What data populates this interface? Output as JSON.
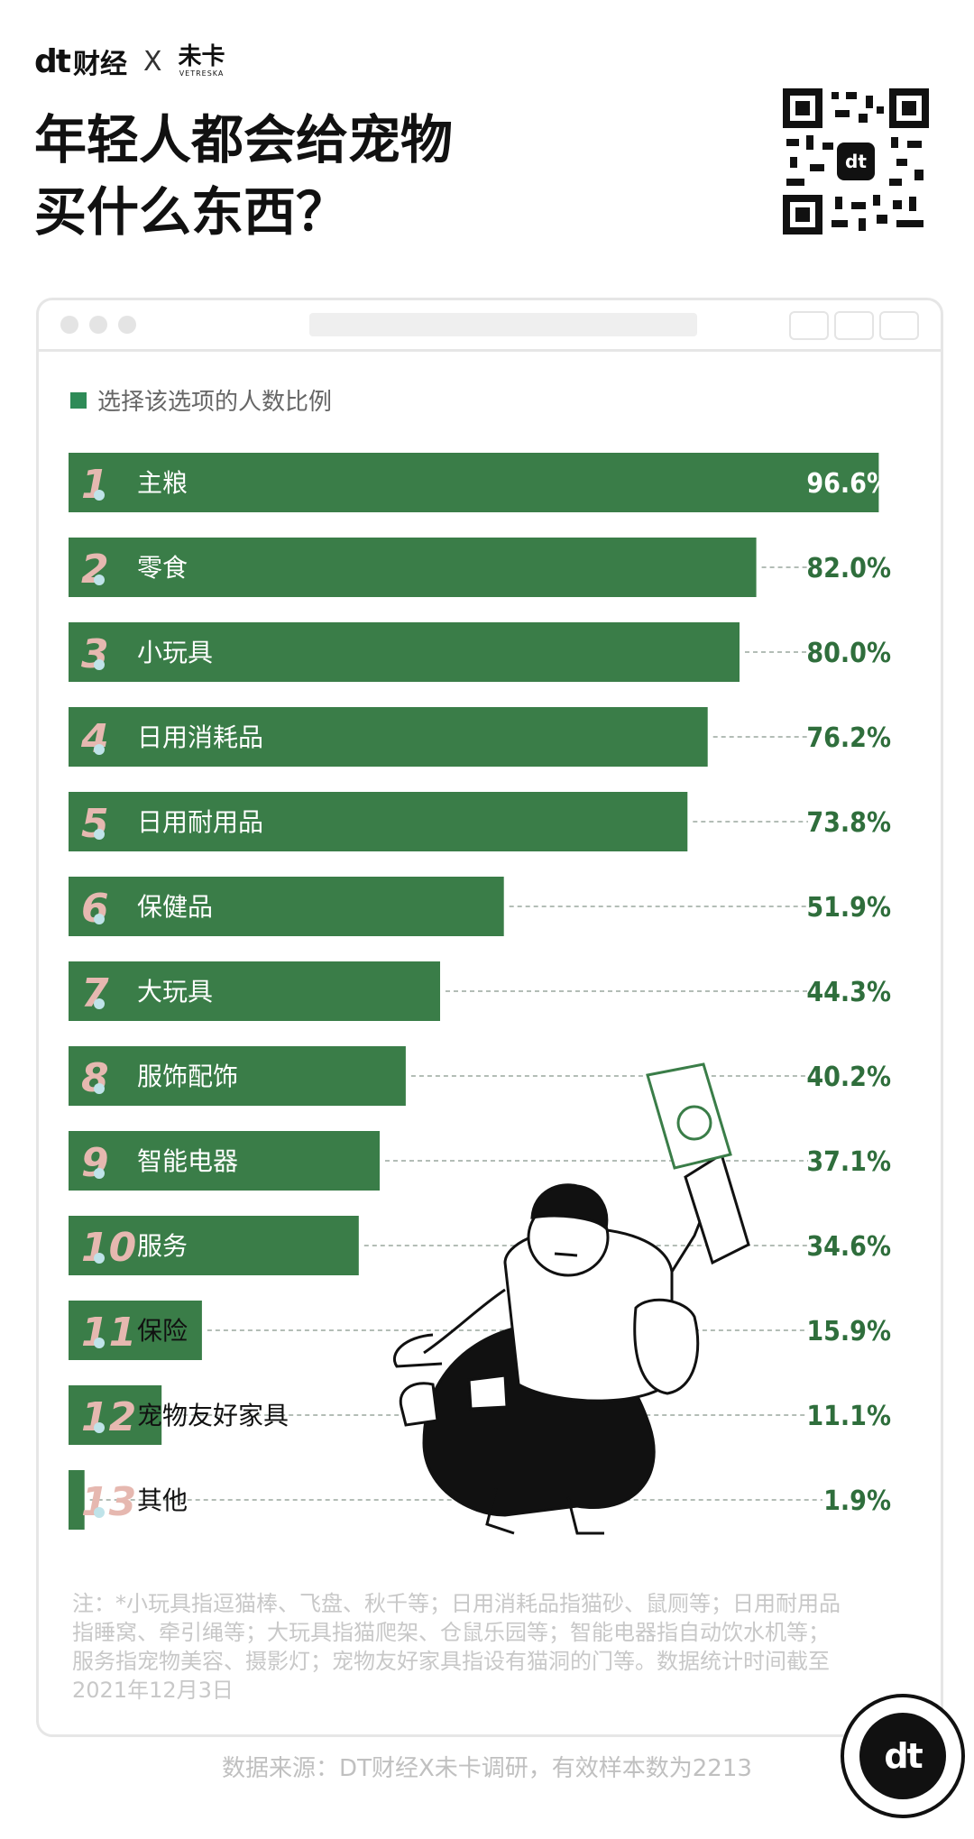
{
  "brand": {
    "dt": "dt",
    "caijing": "财经",
    "separator": "X",
    "partner": "未卡",
    "partner_sub": "VETRESKA"
  },
  "title_lines": [
    "年轻人都会给宠物",
    "买什么东西？"
  ],
  "legend_label": "选择该选项的人数比例",
  "colors": {
    "bar": "#3a7d48",
    "value_text": "#2f6e3c",
    "rank_number": "#e6b8b0",
    "legend_swatch": "#2e8b57"
  },
  "chart_data": {
    "type": "bar",
    "orientation": "horizontal",
    "ranks": [
      "1",
      "2",
      "3",
      "4",
      "5",
      "6",
      "7",
      "8",
      "9",
      "10",
      "11",
      "12",
      "13"
    ],
    "categories": [
      "主粮",
      "零食",
      "小玩具",
      "日用消耗品",
      "日用耐用品",
      "保健品",
      "大玩具",
      "服饰配饰",
      "智能电器",
      "服务",
      "保险",
      "宠物友好家具",
      "其他"
    ],
    "values": [
      96.6,
      82.0,
      80.0,
      76.2,
      73.8,
      51.9,
      44.3,
      40.2,
      37.1,
      34.6,
      15.9,
      11.1,
      1.9
    ],
    "value_labels": [
      "96.6%",
      "82.0%",
      "80.0%",
      "76.2%",
      "73.8%",
      "51.9%",
      "44.3%",
      "40.2%",
      "37.1%",
      "34.6%",
      "15.9%",
      "11.1%",
      "1.9%"
    ],
    "xlim": [
      0,
      100
    ],
    "grid": false,
    "legend": "top-left"
  },
  "note": "注：*小玩具指逗猫棒、飞盘、秋千等；日用消耗品指猫砂、鼠厕等；日用耐用品指睡窝、牵引绳等；大玩具指猫爬架、仓鼠乐园等；智能电器指自动饮水机等；服务指宠物美容、摄影灯；宠物友好家具指设有猫洞的门等。数据统计时间截至2021年12月3日",
  "source": "数据来源：DT财经X未卡调研，有效样本数为2213",
  "badge_text": "dt"
}
